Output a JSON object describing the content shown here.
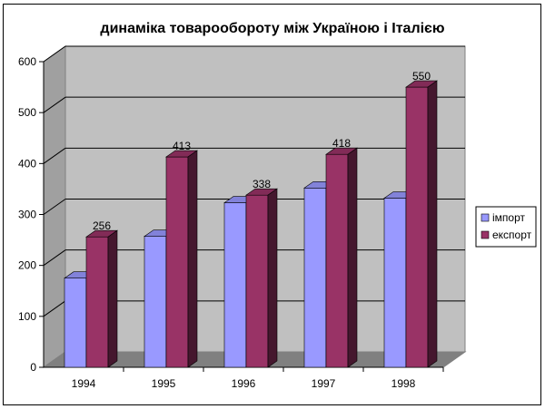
{
  "chart_data": {
    "type": "bar",
    "title": "динаміка товарообороту між Україною і Італією",
    "xlabel": "",
    "ylabel": "",
    "categories": [
      "1994",
      "1995",
      "1996",
      "1997",
      "1998"
    ],
    "series": [
      {
        "name": "імпорт",
        "values": [
          175,
          257,
          323,
          352,
          332
        ],
        "color": "#9999ff",
        "labels": [
          "",
          "",
          "",
          "",
          ""
        ]
      },
      {
        "name": "експорт",
        "values": [
          256,
          413,
          338,
          418,
          550
        ],
        "color": "#993366",
        "labels": [
          "256",
          "413",
          "338",
          "418",
          "550"
        ]
      }
    ],
    "ylim": [
      0,
      600
    ],
    "yticks": [
      "0",
      "100",
      "200",
      "300",
      "400",
      "500",
      "600"
    ],
    "grid": true,
    "legend_position": "right",
    "wall_color": "#c0c0c0",
    "floor_color": "#808080"
  }
}
